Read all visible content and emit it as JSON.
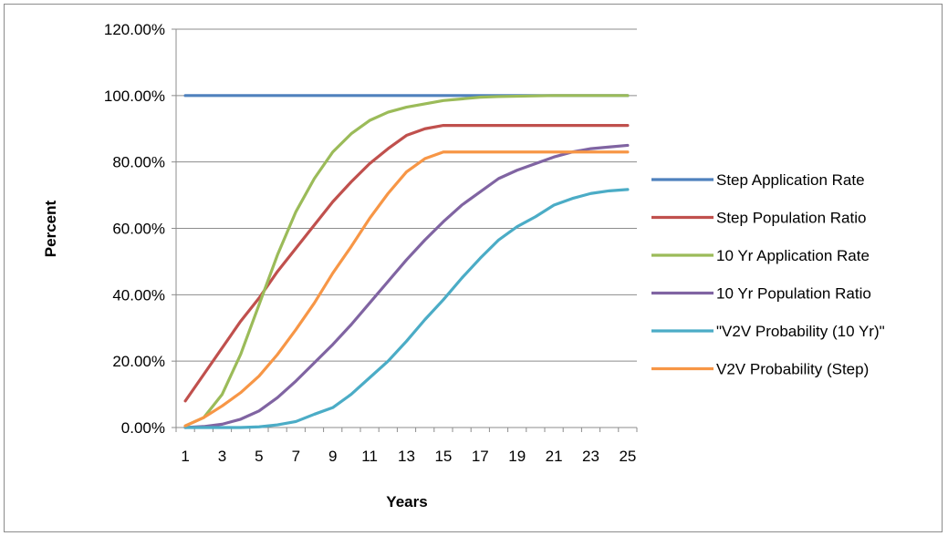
{
  "chart_data": {
    "type": "line",
    "title": "",
    "xlabel": "Years",
    "ylabel": "Percent",
    "x": [
      1,
      2,
      3,
      4,
      5,
      6,
      7,
      8,
      9,
      10,
      11,
      12,
      13,
      14,
      15,
      16,
      17,
      18,
      19,
      20,
      21,
      22,
      23,
      24,
      25
    ],
    "x_tick_labels": [
      "1",
      "3",
      "5",
      "7",
      "9",
      "11",
      "13",
      "15",
      "17",
      "19",
      "21",
      "23",
      "25"
    ],
    "y_tick_labels": [
      "0.00%",
      "20.00%",
      "40.00%",
      "60.00%",
      "80.00%",
      "100.00%",
      "120.00%"
    ],
    "ylim": [
      0,
      1.2
    ],
    "grid": "horizontal",
    "legend_position": "right",
    "series": [
      {
        "name": "Step Application Rate",
        "color": "#4f81bd",
        "values": [
          1,
          1,
          1,
          1,
          1,
          1,
          1,
          1,
          1,
          1,
          1,
          1,
          1,
          1,
          1,
          1,
          1,
          1,
          1,
          1,
          1,
          1,
          1,
          1,
          1
        ]
      },
      {
        "name": "Step Population Ratio",
        "color": "#c0504d",
        "values": [
          0.08,
          0.16,
          0.24,
          0.32,
          0.39,
          0.47,
          0.54,
          0.61,
          0.68,
          0.74,
          0.795,
          0.84,
          0.88,
          0.9,
          0.91,
          0.91,
          0.91,
          0.91,
          0.91,
          0.91,
          0.91,
          0.91,
          0.91,
          0.91,
          0.91
        ]
      },
      {
        "name": "10 Yr Application Rate",
        "color": "#9bbb59",
        "values": [
          0.005,
          0.03,
          0.1,
          0.22,
          0.37,
          0.52,
          0.65,
          0.75,
          0.83,
          0.885,
          0.925,
          0.95,
          0.965,
          0.975,
          0.985,
          0.99,
          0.995,
          0.997,
          0.998,
          0.999,
          1,
          1,
          1,
          1,
          1
        ]
      },
      {
        "name": "10 Yr Population Ratio",
        "color": "#8064a2",
        "values": [
          0.0,
          0.003,
          0.01,
          0.025,
          0.05,
          0.09,
          0.14,
          0.195,
          0.25,
          0.31,
          0.375,
          0.44,
          0.505,
          0.565,
          0.62,
          0.67,
          0.71,
          0.75,
          0.775,
          0.795,
          0.815,
          0.83,
          0.84,
          0.845,
          0.85
        ]
      },
      {
        "name": "\"V2V Probability (10 Yr)\"",
        "color": "#4bacc6",
        "values": [
          0.0,
          0.0,
          0.0,
          0.0,
          0.002,
          0.008,
          0.018,
          0.04,
          0.06,
          0.1,
          0.15,
          0.2,
          0.26,
          0.325,
          0.385,
          0.45,
          0.51,
          0.565,
          0.605,
          0.635,
          0.67,
          0.69,
          0.705,
          0.713,
          0.717
        ]
      },
      {
        "name": "V2V Probability (Step)",
        "color": "#f79646",
        "values": [
          0.005,
          0.03,
          0.065,
          0.105,
          0.155,
          0.22,
          0.295,
          0.375,
          0.465,
          0.545,
          0.63,
          0.705,
          0.77,
          0.81,
          0.83,
          0.83,
          0.83,
          0.83,
          0.83,
          0.83,
          0.83,
          0.83,
          0.83,
          0.83,
          0.83
        ]
      }
    ]
  }
}
